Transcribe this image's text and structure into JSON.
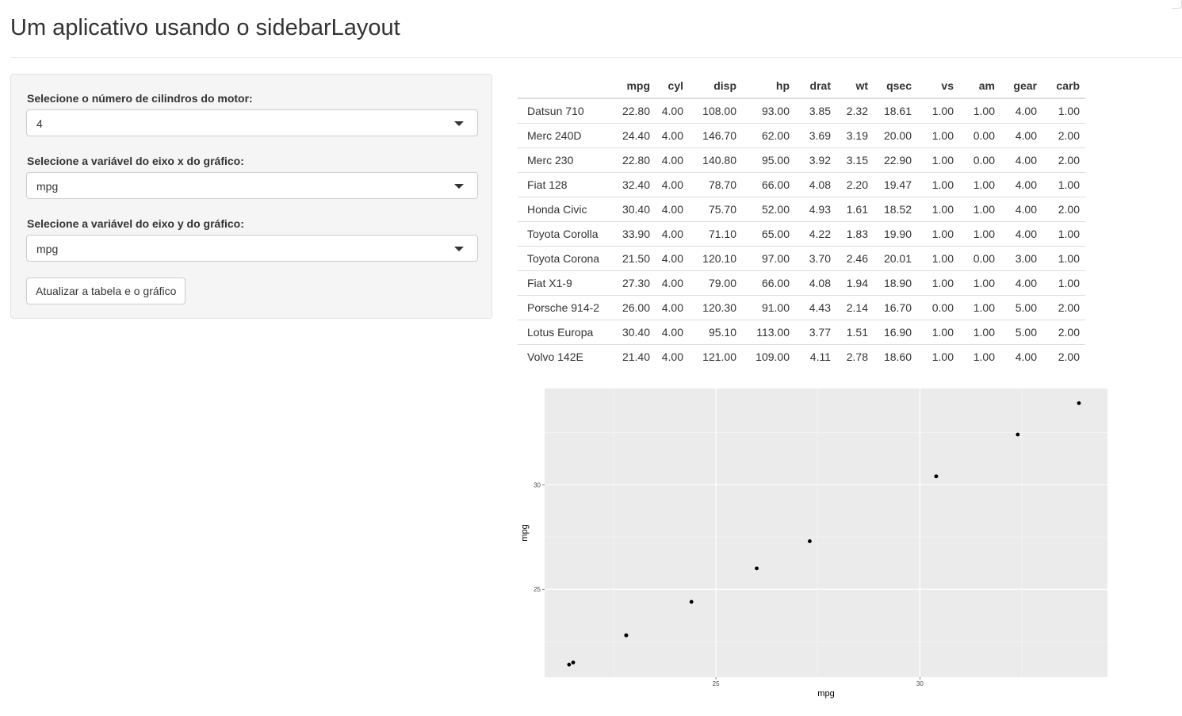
{
  "page": {
    "title": "Um aplicativo usando o sidebarLayout"
  },
  "sidebar": {
    "cyl": {
      "label": "Selecione o número de cilindros do motor:",
      "value": "4"
    },
    "xvar": {
      "label": "Selecione a variável do eixo x do gráfico:",
      "value": "mpg"
    },
    "yvar": {
      "label": "Selecione a variável do eixo y do gráfico:",
      "value": "mpg"
    },
    "button_label": "Atualizar a tabela e o gráfico"
  },
  "table": {
    "columns": [
      "",
      "mpg",
      "cyl",
      "disp",
      "hp",
      "drat",
      "wt",
      "qsec",
      "vs",
      "am",
      "gear",
      "carb"
    ],
    "rows": [
      [
        "Datsun 710",
        "22.80",
        "4.00",
        "108.00",
        "93.00",
        "3.85",
        "2.32",
        "18.61",
        "1.00",
        "1.00",
        "4.00",
        "1.00"
      ],
      [
        "Merc 240D",
        "24.40",
        "4.00",
        "146.70",
        "62.00",
        "3.69",
        "3.19",
        "20.00",
        "1.00",
        "0.00",
        "4.00",
        "2.00"
      ],
      [
        "Merc 230",
        "22.80",
        "4.00",
        "140.80",
        "95.00",
        "3.92",
        "3.15",
        "22.90",
        "1.00",
        "0.00",
        "4.00",
        "2.00"
      ],
      [
        "Fiat 128",
        "32.40",
        "4.00",
        "78.70",
        "66.00",
        "4.08",
        "2.20",
        "19.47",
        "1.00",
        "1.00",
        "4.00",
        "1.00"
      ],
      [
        "Honda Civic",
        "30.40",
        "4.00",
        "75.70",
        "52.00",
        "4.93",
        "1.61",
        "18.52",
        "1.00",
        "1.00",
        "4.00",
        "2.00"
      ],
      [
        "Toyota Corolla",
        "33.90",
        "4.00",
        "71.10",
        "65.00",
        "4.22",
        "1.83",
        "19.90",
        "1.00",
        "1.00",
        "4.00",
        "1.00"
      ],
      [
        "Toyota Corona",
        "21.50",
        "4.00",
        "120.10",
        "97.00",
        "3.70",
        "2.46",
        "20.01",
        "1.00",
        "0.00",
        "3.00",
        "1.00"
      ],
      [
        "Fiat X1-9",
        "27.30",
        "4.00",
        "79.00",
        "66.00",
        "4.08",
        "1.94",
        "18.90",
        "1.00",
        "1.00",
        "4.00",
        "1.00"
      ],
      [
        "Porsche 914-2",
        "26.00",
        "4.00",
        "120.30",
        "91.00",
        "4.43",
        "2.14",
        "16.70",
        "0.00",
        "1.00",
        "5.00",
        "2.00"
      ],
      [
        "Lotus Europa",
        "30.40",
        "4.00",
        "95.10",
        "113.00",
        "3.77",
        "1.51",
        "16.90",
        "1.00",
        "1.00",
        "5.00",
        "2.00"
      ],
      [
        "Volvo 142E",
        "21.40",
        "4.00",
        "121.00",
        "109.00",
        "4.11",
        "2.78",
        "18.60",
        "1.00",
        "1.00",
        "4.00",
        "2.00"
      ]
    ]
  },
  "chart_data": {
    "type": "scatter",
    "title": "",
    "xlabel": "mpg",
    "ylabel": "mpg",
    "xlim": [
      20.8,
      34.6
    ],
    "ylim": [
      20.8,
      34.6
    ],
    "xticks": [
      25,
      30
    ],
    "yticks": [
      25,
      30
    ],
    "xtick_labels": [
      "25",
      "30"
    ],
    "ytick_labels": [
      "25",
      "30"
    ],
    "grid": true,
    "background": "#ebebeb",
    "point_color": "#000000",
    "points": [
      {
        "x": 22.8,
        "y": 22.8
      },
      {
        "x": 24.4,
        "y": 24.4
      },
      {
        "x": 22.8,
        "y": 22.8
      },
      {
        "x": 32.4,
        "y": 32.4
      },
      {
        "x": 30.4,
        "y": 30.4
      },
      {
        "x": 33.9,
        "y": 33.9
      },
      {
        "x": 21.5,
        "y": 21.5
      },
      {
        "x": 27.3,
        "y": 27.3
      },
      {
        "x": 26.0,
        "y": 26.0
      },
      {
        "x": 30.4,
        "y": 30.4
      },
      {
        "x": 21.4,
        "y": 21.4
      }
    ]
  }
}
